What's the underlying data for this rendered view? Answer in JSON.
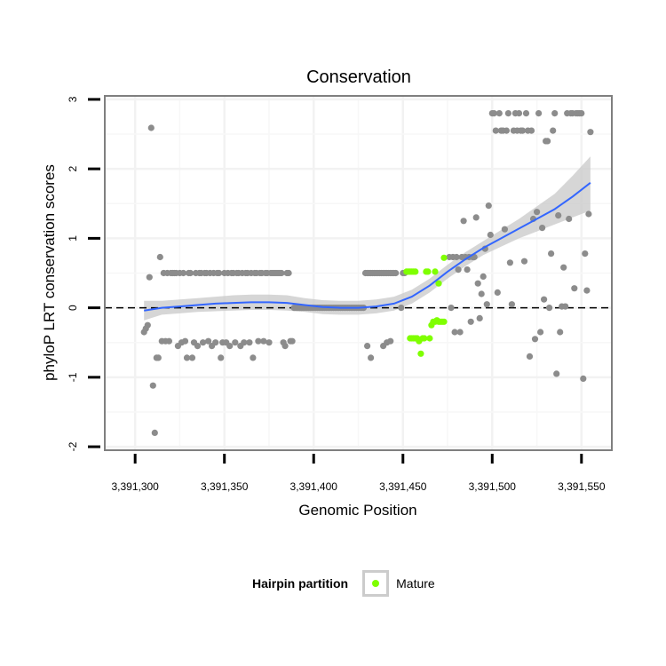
{
  "chart_data": {
    "type": "scatter",
    "title": "Conservation",
    "xlabel": "Genomic Position",
    "ylabel": "phyloP LRT conservation scores",
    "xlim": [
      3391283,
      3391567
    ],
    "ylim": [
      -2.05,
      3.05
    ],
    "xticks": [
      3391300,
      3391350,
      3391400,
      3391450,
      3391500,
      3391550
    ],
    "xtick_labels": [
      "3,391,300",
      "3,391,350",
      "3,391,400",
      "3,391,450",
      "3,391,500",
      "3,391,550"
    ],
    "yticks": [
      -2,
      -1,
      0,
      1,
      2,
      3
    ],
    "ytick_labels": [
      "-2",
      "-1",
      "0",
      "1",
      "2",
      "3"
    ],
    "hline": 0,
    "grid": true,
    "colors": {
      "other": "#8c8c8c",
      "mature": "#7fff00",
      "smooth": "#3366ff",
      "band": "#c8c8c8"
    },
    "series": [
      {
        "name": "Other",
        "points": [
          [
            3391305,
            -0.35
          ],
          [
            3391306,
            -0.3
          ],
          [
            3391307,
            -0.25
          ],
          [
            3391308,
            0.44
          ],
          [
            3391309,
            2.59
          ],
          [
            3391310,
            -1.12
          ],
          [
            3391311,
            -1.8
          ],
          [
            3391312,
            -0.72
          ],
          [
            3391313,
            -0.72
          ],
          [
            3391314,
            0.73
          ],
          [
            3391315,
            -0.48
          ],
          [
            3391316,
            0.5
          ],
          [
            3391317,
            -0.48
          ],
          [
            3391318,
            0.5
          ],
          [
            3391319,
            -0.48
          ],
          [
            3391320,
            0.5
          ],
          [
            3391321,
            0.5
          ],
          [
            3391322,
            0.5
          ],
          [
            3391323,
            0.5
          ],
          [
            3391324,
            -0.55
          ],
          [
            3391325,
            0.5
          ],
          [
            3391326,
            -0.5
          ],
          [
            3391327,
            0.5
          ],
          [
            3391328,
            -0.48
          ],
          [
            3391329,
            -0.72
          ],
          [
            3391330,
            0.5
          ],
          [
            3391331,
            0.5
          ],
          [
            3391332,
            -0.72
          ],
          [
            3391333,
            -0.5
          ],
          [
            3391334,
            0.5
          ],
          [
            3391335,
            -0.55
          ],
          [
            3391336,
            0.5
          ],
          [
            3391337,
            0.5
          ],
          [
            3391338,
            -0.5
          ],
          [
            3391339,
            0.5
          ],
          [
            3391340,
            0.5
          ],
          [
            3391341,
            -0.48
          ],
          [
            3391342,
            0.5
          ],
          [
            3391343,
            -0.55
          ],
          [
            3391344,
            0.5
          ],
          [
            3391345,
            -0.5
          ],
          [
            3391346,
            0.5
          ],
          [
            3391347,
            0.5
          ],
          [
            3391348,
            -0.72
          ],
          [
            3391349,
            -0.5
          ],
          [
            3391350,
            0.5
          ],
          [
            3391351,
            -0.5
          ],
          [
            3391352,
            0.5
          ],
          [
            3391353,
            -0.55
          ],
          [
            3391354,
            0.5
          ],
          [
            3391355,
            0.5
          ],
          [
            3391356,
            -0.5
          ],
          [
            3391357,
            0.5
          ],
          [
            3391358,
            0.5
          ],
          [
            3391359,
            -0.55
          ],
          [
            3391360,
            0.5
          ],
          [
            3391361,
            -0.5
          ],
          [
            3391362,
            0.5
          ],
          [
            3391363,
            0.5
          ],
          [
            3391364,
            -0.5
          ],
          [
            3391365,
            0.5
          ],
          [
            3391366,
            -0.72
          ],
          [
            3391367,
            0.5
          ],
          [
            3391368,
            0.5
          ],
          [
            3391369,
            -0.48
          ],
          [
            3391370,
            0.5
          ],
          [
            3391371,
            0.5
          ],
          [
            3391372,
            -0.48
          ],
          [
            3391373,
            0.5
          ],
          [
            3391374,
            0.5
          ],
          [
            3391375,
            -0.5
          ],
          [
            3391376,
            0.5
          ],
          [
            3391377,
            0.5
          ],
          [
            3391378,
            0.5
          ],
          [
            3391379,
            0.5
          ],
          [
            3391380,
            0.5
          ],
          [
            3391381,
            0.5
          ],
          [
            3391382,
            0.5
          ],
          [
            3391383,
            -0.5
          ],
          [
            3391384,
            -0.55
          ],
          [
            3391385,
            0.5
          ],
          [
            3391386,
            0.5
          ],
          [
            3391387,
            -0.48
          ],
          [
            3391388,
            -0.48
          ],
          [
            3391389,
            0.0
          ],
          [
            3391390,
            0.0
          ],
          [
            3391391,
            0.0
          ],
          [
            3391392,
            0.0
          ],
          [
            3391393,
            0.0
          ],
          [
            3391394,
            0.0
          ],
          [
            3391395,
            0.0
          ],
          [
            3391396,
            0.0
          ],
          [
            3391397,
            0.0
          ],
          [
            3391398,
            0.0
          ],
          [
            3391399,
            0.0
          ],
          [
            3391400,
            0.0
          ],
          [
            3391401,
            0.0
          ],
          [
            3391402,
            0.0
          ],
          [
            3391403,
            0.0
          ],
          [
            3391404,
            0.0
          ],
          [
            3391405,
            0.0
          ],
          [
            3391406,
            0.0
          ],
          [
            3391407,
            0.0
          ],
          [
            3391408,
            0.0
          ],
          [
            3391409,
            0.0
          ],
          [
            3391410,
            0.0
          ],
          [
            3391411,
            0.0
          ],
          [
            3391412,
            0.0
          ],
          [
            3391413,
            0.0
          ],
          [
            3391414,
            0.0
          ],
          [
            3391415,
            0.0
          ],
          [
            3391416,
            0.0
          ],
          [
            3391417,
            0.0
          ],
          [
            3391418,
            0.0
          ],
          [
            3391419,
            0.0
          ],
          [
            3391420,
            0.0
          ],
          [
            3391421,
            0.0
          ],
          [
            3391422,
            0.0
          ],
          [
            3391423,
            0.0
          ],
          [
            3391424,
            0.0
          ],
          [
            3391425,
            0.0
          ],
          [
            3391426,
            0.0
          ],
          [
            3391427,
            0.0
          ],
          [
            3391428,
            0.0
          ],
          [
            3391429,
            0.5
          ],
          [
            3391430,
            0.5
          ],
          [
            3391431,
            0.5
          ],
          [
            3391432,
            0.5
          ],
          [
            3391433,
            0.5
          ],
          [
            3391434,
            0.5
          ],
          [
            3391435,
            0.5
          ],
          [
            3391436,
            0.5
          ],
          [
            3391437,
            0.5
          ],
          [
            3391438,
            0.5
          ],
          [
            3391439,
            0.5
          ],
          [
            3391440,
            0.5
          ],
          [
            3391441,
            0.5
          ],
          [
            3391442,
            0.5
          ],
          [
            3391443,
            0.5
          ],
          [
            3391444,
            0.5
          ],
          [
            3391445,
            0.5
          ],
          [
            3391446,
            0.5
          ],
          [
            3391430,
            -0.55
          ],
          [
            3391432,
            -0.72
          ],
          [
            3391439,
            -0.55
          ],
          [
            3391441,
            -0.5
          ],
          [
            3391443,
            -0.48
          ],
          [
            3391449,
            0.0
          ],
          [
            3391450,
            0.5
          ],
          [
            3391451,
            0.5
          ],
          [
            3391476,
            0.73
          ],
          [
            3391477,
            0.0
          ],
          [
            3391478,
            0.73
          ],
          [
            3391479,
            -0.35
          ],
          [
            3391480,
            0.73
          ],
          [
            3391481,
            0.55
          ],
          [
            3391482,
            -0.35
          ],
          [
            3391483,
            0.73
          ],
          [
            3391484,
            1.25
          ],
          [
            3391485,
            0.73
          ],
          [
            3391486,
            0.55
          ],
          [
            3391487,
            0.73
          ],
          [
            3391488,
            -0.2
          ],
          [
            3391489,
            0.73
          ],
          [
            3391490,
            0.73
          ],
          [
            3391491,
            1.3
          ],
          [
            3391492,
            0.35
          ],
          [
            3391493,
            -0.15
          ],
          [
            3391494,
            0.2
          ],
          [
            3391495,
            0.45
          ],
          [
            3391496,
            0.85
          ],
          [
            3391497,
            0.05
          ],
          [
            3391498,
            1.47
          ],
          [
            3391499,
            1.05
          ],
          [
            3391500,
            2.8
          ],
          [
            3391501,
            2.8
          ],
          [
            3391502,
            2.55
          ],
          [
            3391503,
            0.22
          ],
          [
            3391504,
            2.8
          ],
          [
            3391505,
            2.55
          ],
          [
            3391506,
            2.55
          ],
          [
            3391507,
            1.13
          ],
          [
            3391508,
            2.55
          ],
          [
            3391509,
            2.8
          ],
          [
            3391510,
            0.65
          ],
          [
            3391511,
            0.05
          ],
          [
            3391512,
            2.55
          ],
          [
            3391513,
            2.8
          ],
          [
            3391514,
            2.55
          ],
          [
            3391515,
            2.8
          ],
          [
            3391516,
            2.55
          ],
          [
            3391517,
            2.55
          ],
          [
            3391518,
            0.67
          ],
          [
            3391519,
            2.8
          ],
          [
            3391520,
            2.55
          ],
          [
            3391521,
            -0.7
          ],
          [
            3391522,
            2.55
          ],
          [
            3391523,
            1.28
          ],
          [
            3391524,
            -0.45
          ],
          [
            3391525,
            1.38
          ],
          [
            3391526,
            2.8
          ],
          [
            3391527,
            -0.35
          ],
          [
            3391528,
            1.15
          ],
          [
            3391529,
            0.12
          ],
          [
            3391530,
            2.4
          ],
          [
            3391531,
            2.4
          ],
          [
            3391532,
            0.0
          ],
          [
            3391533,
            0.78
          ],
          [
            3391534,
            2.55
          ],
          [
            3391535,
            2.8
          ],
          [
            3391536,
            -0.95
          ],
          [
            3391537,
            1.33
          ],
          [
            3391538,
            -0.35
          ],
          [
            3391539,
            0.02
          ],
          [
            3391540,
            0.58
          ],
          [
            3391541,
            0.02
          ],
          [
            3391542,
            2.8
          ],
          [
            3391543,
            1.28
          ],
          [
            3391544,
            2.8
          ],
          [
            3391545,
            2.8
          ],
          [
            3391546,
            0.28
          ],
          [
            3391547,
            2.8
          ],
          [
            3391548,
            2.8
          ],
          [
            3391549,
            2.8
          ],
          [
            3391550,
            2.8
          ],
          [
            3391551,
            -1.02
          ],
          [
            3391552,
            0.78
          ],
          [
            3391553,
            0.25
          ],
          [
            3391554,
            1.35
          ],
          [
            3391555,
            2.53
          ]
        ]
      },
      {
        "name": "Mature",
        "points": [
          [
            3391452,
            0.52
          ],
          [
            3391453,
            0.52
          ],
          [
            3391454,
            0.52
          ],
          [
            3391455,
            0.52
          ],
          [
            3391456,
            0.52
          ],
          [
            3391457,
            0.52
          ],
          [
            3391454,
            -0.44
          ],
          [
            3391455,
            -0.44
          ],
          [
            3391456,
            -0.44
          ],
          [
            3391457,
            -0.44
          ],
          [
            3391458,
            -0.44
          ],
          [
            3391459,
            -0.48
          ],
          [
            3391460,
            -0.66
          ],
          [
            3391461,
            -0.44
          ],
          [
            3391462,
            -0.44
          ],
          [
            3391463,
            0.52
          ],
          [
            3391464,
            0.52
          ],
          [
            3391465,
            -0.44
          ],
          [
            3391466,
            -0.25
          ],
          [
            3391467,
            -0.2
          ],
          [
            3391468,
            -0.2
          ],
          [
            3391469,
            -0.18
          ],
          [
            3391470,
            -0.2
          ],
          [
            3391471,
            -0.2
          ],
          [
            3391472,
            -0.2
          ],
          [
            3391473,
            -0.2
          ],
          [
            3391468,
            0.52
          ],
          [
            3391473,
            0.72
          ],
          [
            3391470,
            0.35
          ]
        ]
      }
    ],
    "smooth": {
      "name": "loess fit",
      "x": [
        3391305,
        3391315,
        3391325,
        3391335,
        3391345,
        3391355,
        3391365,
        3391375,
        3391385,
        3391395,
        3391405,
        3391415,
        3391425,
        3391435,
        3391445,
        3391455,
        3391465,
        3391475,
        3391485,
        3391495,
        3391505,
        3391515,
        3391525,
        3391535,
        3391545,
        3391555
      ],
      "y": [
        -0.04,
        0.0,
        0.02,
        0.04,
        0.06,
        0.07,
        0.08,
        0.08,
        0.07,
        0.04,
        0.01,
        0.0,
        0.0,
        0.02,
        0.06,
        0.16,
        0.32,
        0.52,
        0.7,
        0.86,
        1.0,
        1.14,
        1.28,
        1.42,
        1.6,
        1.8
      ],
      "lower": [
        -0.18,
        -0.1,
        -0.08,
        -0.06,
        -0.05,
        -0.04,
        -0.03,
        -0.03,
        -0.04,
        -0.06,
        -0.09,
        -0.1,
        -0.1,
        -0.08,
        -0.04,
        0.06,
        0.22,
        0.42,
        0.6,
        0.76,
        0.88,
        1.0,
        1.1,
        1.2,
        1.3,
        1.4
      ],
      "upper": [
        0.1,
        0.1,
        0.12,
        0.14,
        0.16,
        0.18,
        0.19,
        0.19,
        0.18,
        0.14,
        0.11,
        0.1,
        0.1,
        0.12,
        0.16,
        0.26,
        0.42,
        0.62,
        0.8,
        0.96,
        1.12,
        1.28,
        1.46,
        1.64,
        1.9,
        2.18
      ]
    },
    "legend": {
      "title": "Hairpin partition",
      "entries": [
        "Mature"
      ],
      "position": "bottom"
    }
  }
}
